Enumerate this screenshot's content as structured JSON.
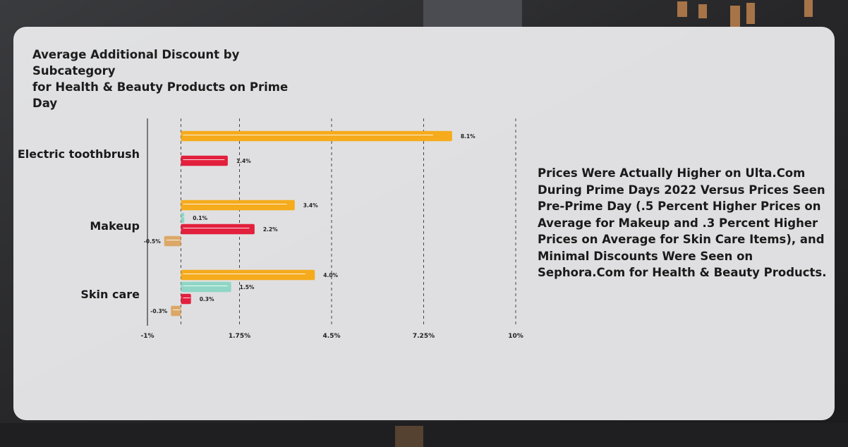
{
  "chart_data": {
    "type": "bar",
    "orientation": "horizontal",
    "title": [
      "Average Additional Discount by Subcategory",
      "for Health & Beauty Products on Prime Day"
    ],
    "xlim": [
      -1,
      10
    ],
    "ticks": [
      "-1%",
      "1.75%",
      "4.5%",
      "7.25%",
      "10%"
    ],
    "tick_values": [
      -1,
      1.75,
      4.5,
      7.25,
      10
    ],
    "grid": "dashed vertical",
    "categories": [
      {
        "name": "Electric toothbrush",
        "bars": [
          {
            "value": 8.1,
            "label": "8.1%",
            "color": "#f5ab1c"
          },
          {
            "value": 1.4,
            "label": "1.4%",
            "color": "#e2203d"
          }
        ]
      },
      {
        "name": "Makeup",
        "bars": [
          {
            "value": 3.4,
            "label": "3.4%",
            "color": "#f5ab1c"
          },
          {
            "value": 0.1,
            "label": "0.1%",
            "color": "#8fd6c6"
          },
          {
            "value": 2.2,
            "label": "2.2%",
            "color": "#e2203d"
          },
          {
            "value": -0.5,
            "label": "-0.5%",
            "color": "#dca867"
          }
        ]
      },
      {
        "name": "Skin care",
        "bars": [
          {
            "value": 4.0,
            "label": "4.0%",
            "color": "#f5ab1c"
          },
          {
            "value": 1.5,
            "label": "1.5%",
            "color": "#8fd6c6"
          },
          {
            "value": 0.3,
            "label": "0.3%",
            "color": "#e2203d"
          },
          {
            "value": -0.3,
            "label": "-0.3%",
            "color": "#dca867"
          }
        ]
      }
    ]
  },
  "note": "Prices Were Actually Higher on Ulta.Com During Prime Days 2022 Versus Prices Seen Pre-Prime Day (.5 Percent Higher Prices on Average for Makeup and .3 Percent Higher Prices on Average for Skin Care Items), and Minimal Discounts Were Seen on Sephora.Com for Health & Beauty Products."
}
